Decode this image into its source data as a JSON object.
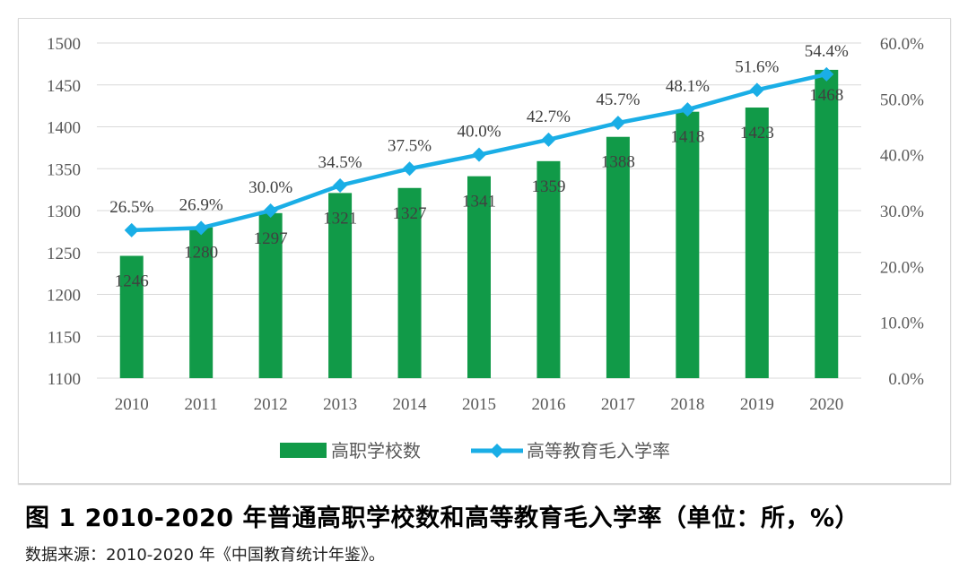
{
  "chart_data": {
    "type": "bar+line",
    "categories": [
      "2010",
      "2011",
      "2012",
      "2013",
      "2014",
      "2015",
      "2016",
      "2017",
      "2018",
      "2019",
      "2020"
    ],
    "series": [
      {
        "name": "高职学校数",
        "type": "bar",
        "axis": "left",
        "color": "#119a48",
        "values": [
          1246,
          1280,
          1297,
          1321,
          1327,
          1341,
          1359,
          1388,
          1418,
          1423,
          1468
        ],
        "labels": [
          "1246",
          "1280",
          "1297",
          "1321",
          "1327",
          "1341",
          "1359",
          "1388",
          "1418",
          "1423",
          "1468"
        ]
      },
      {
        "name": "高等教育毛入学率",
        "type": "line",
        "axis": "right",
        "color": "#1aaee6",
        "marker": "diamond",
        "values": [
          26.5,
          26.9,
          30.0,
          34.5,
          37.5,
          40.0,
          42.7,
          45.7,
          48.1,
          51.6,
          54.4
        ],
        "labels": [
          "26.5%",
          "26.9%",
          "30.0%",
          "34.5%",
          "37.5%",
          "40.0%",
          "42.7%",
          "45.7%",
          "48.1%",
          "51.6%",
          "54.4%"
        ]
      }
    ],
    "ylim_left": [
      1100,
      1500
    ],
    "yticks_left": [
      "1100",
      "1150",
      "1200",
      "1250",
      "1300",
      "1350",
      "1400",
      "1450",
      "1500"
    ],
    "ylim_right": [
      0,
      60
    ],
    "yticks_right": [
      "0.0%",
      "10.0%",
      "20.0%",
      "30.0%",
      "40.0%",
      "50.0%",
      "60.0%"
    ],
    "grid": true,
    "legend": "bottom"
  },
  "caption": "图 1 2010-2020 年普通高职学校数和高等教育毛入学率（单位：所，%）",
  "source": "数据来源：2010-2020 年《中国教育统计年鉴》。"
}
